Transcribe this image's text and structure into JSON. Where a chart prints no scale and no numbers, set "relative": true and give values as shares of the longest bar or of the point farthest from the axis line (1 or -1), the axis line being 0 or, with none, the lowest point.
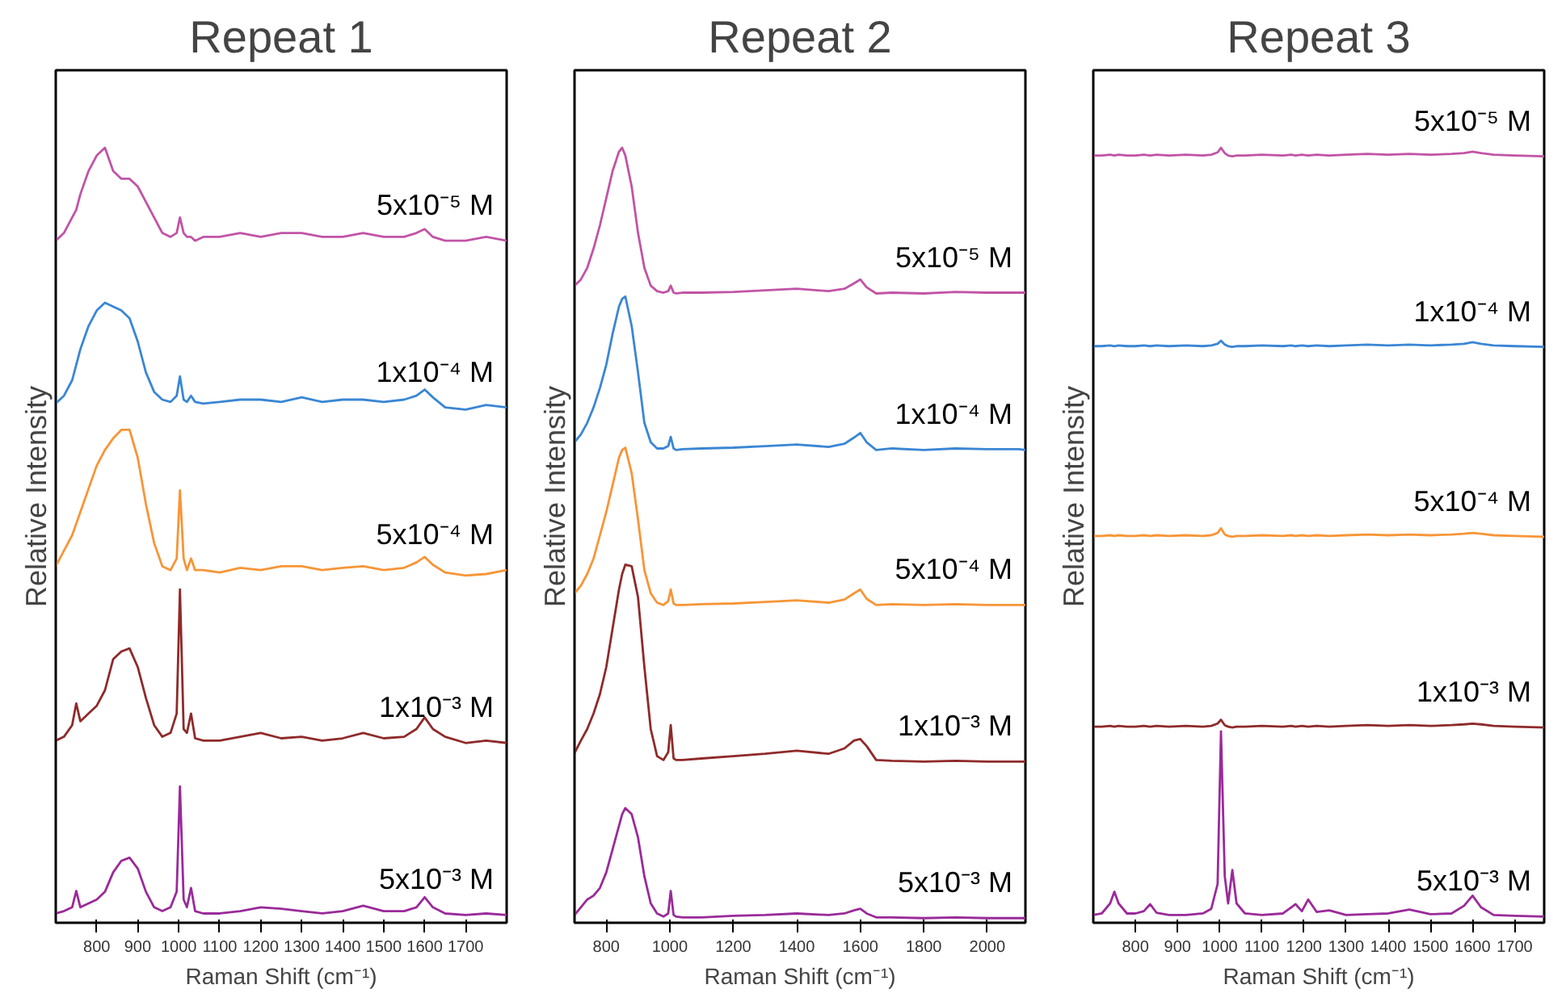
{
  "chart_data": [
    {
      "type": "line",
      "title": "Repeat 1",
      "xlabel": "Raman Shift (cm⁻¹)",
      "ylabel": "Relative Intensity",
      "relative": true,
      "tick_labels": "x",
      "xlim": [
        700,
        1800
      ],
      "xticks": [
        800,
        900,
        1000,
        1100,
        1200,
        1300,
        1400,
        1500,
        1600,
        1700
      ],
      "x": [
        700,
        720,
        740,
        750,
        760,
        780,
        800,
        820,
        840,
        860,
        880,
        900,
        920,
        940,
        960,
        980,
        995,
        1003,
        1012,
        1020,
        1030,
        1040,
        1060,
        1100,
        1150,
        1200,
        1250,
        1300,
        1350,
        1400,
        1450,
        1500,
        1550,
        1580,
        1600,
        1620,
        1650,
        1700,
        1750,
        1800
      ],
      "series": [
        {
          "name": "5x10⁻⁵ M",
          "color": "#c154a6",
          "values": [
            0.88,
            0.89,
            0.91,
            0.92,
            0.94,
            0.97,
            0.99,
            1.0,
            0.97,
            0.96,
            0.96,
            0.95,
            0.93,
            0.91,
            0.89,
            0.885,
            0.89,
            0.91,
            0.89,
            0.885,
            0.885,
            0.88,
            0.885,
            0.885,
            0.89,
            0.885,
            0.89,
            0.89,
            0.885,
            0.885,
            0.89,
            0.885,
            0.885,
            0.89,
            0.895,
            0.885,
            0.88,
            0.88,
            0.885,
            0.88
          ]
        },
        {
          "name": "1x10⁻⁴ M",
          "color": "#3a86d4",
          "values": [
            0.67,
            0.68,
            0.7,
            0.72,
            0.74,
            0.77,
            0.79,
            0.8,
            0.795,
            0.79,
            0.78,
            0.75,
            0.71,
            0.685,
            0.675,
            0.672,
            0.68,
            0.705,
            0.675,
            0.672,
            0.68,
            0.672,
            0.67,
            0.672,
            0.675,
            0.675,
            0.672,
            0.678,
            0.672,
            0.675,
            0.675,
            0.672,
            0.675,
            0.68,
            0.688,
            0.678,
            0.665,
            0.662,
            0.668,
            0.665
          ]
        },
        {
          "name": "5x10⁻⁴ M",
          "color": "#f79537",
          "values": [
            0.46,
            0.48,
            0.5,
            0.515,
            0.53,
            0.56,
            0.59,
            0.61,
            0.625,
            0.636,
            0.636,
            0.6,
            0.54,
            0.49,
            0.46,
            0.455,
            0.47,
            0.558,
            0.47,
            0.455,
            0.47,
            0.455,
            0.455,
            0.452,
            0.458,
            0.455,
            0.46,
            0.46,
            0.455,
            0.458,
            0.46,
            0.455,
            0.458,
            0.465,
            0.472,
            0.462,
            0.452,
            0.448,
            0.45,
            0.455
          ]
        },
        {
          "name": "1x10⁻³ M",
          "color": "#8f2a2a",
          "values": [
            0.235,
            0.24,
            0.255,
            0.283,
            0.26,
            0.27,
            0.28,
            0.3,
            0.34,
            0.35,
            0.354,
            0.33,
            0.29,
            0.255,
            0.24,
            0.245,
            0.27,
            0.43,
            0.25,
            0.245,
            0.27,
            0.238,
            0.235,
            0.235,
            0.24,
            0.245,
            0.238,
            0.24,
            0.235,
            0.238,
            0.245,
            0.238,
            0.24,
            0.25,
            0.265,
            0.25,
            0.24,
            0.232,
            0.235,
            0.232
          ]
        },
        {
          "name": "5x10⁻³ M",
          "color": "#9a2a9a",
          "values": [
            0.012,
            0.015,
            0.02,
            0.041,
            0.02,
            0.025,
            0.03,
            0.04,
            0.065,
            0.08,
            0.084,
            0.07,
            0.04,
            0.02,
            0.015,
            0.02,
            0.04,
            0.176,
            0.03,
            0.02,
            0.045,
            0.015,
            0.012,
            0.012,
            0.015,
            0.02,
            0.018,
            0.015,
            0.012,
            0.015,
            0.022,
            0.015,
            0.015,
            0.02,
            0.033,
            0.02,
            0.012,
            0.01,
            0.012,
            0.01
          ]
        }
      ]
    },
    {
      "type": "line",
      "title": "Repeat 2",
      "xlabel": "Raman Shift (cm⁻¹)",
      "ylabel": "Relative Intensity",
      "relative": true,
      "tick_labels": "x",
      "xlim": [
        700,
        2120
      ],
      "xticks": [
        800,
        1000,
        1200,
        1400,
        1600,
        1800,
        2000
      ],
      "x": [
        700,
        720,
        740,
        760,
        780,
        800,
        820,
        840,
        850,
        860,
        880,
        900,
        920,
        940,
        960,
        980,
        995,
        1003,
        1012,
        1020,
        1040,
        1100,
        1200,
        1300,
        1400,
        1500,
        1550,
        1580,
        1600,
        1620,
        1650,
        1700,
        1800,
        1900,
        2000,
        2100,
        2120
      ],
      "series": [
        {
          "name": "5x10⁻⁵ M",
          "color": "#c154a6",
          "values": [
            0.822,
            0.83,
            0.845,
            0.87,
            0.9,
            0.935,
            0.97,
            0.995,
            1.0,
            0.99,
            0.95,
            0.89,
            0.845,
            0.822,
            0.815,
            0.813,
            0.815,
            0.822,
            0.813,
            0.812,
            0.813,
            0.813,
            0.814,
            0.816,
            0.818,
            0.815,
            0.818,
            0.825,
            0.83,
            0.82,
            0.812,
            0.813,
            0.812,
            0.814,
            0.813,
            0.813,
            0.813
          ]
        },
        {
          "name": "1x10⁻⁴ M",
          "color": "#3a86d4",
          "values": [
            0.62,
            0.63,
            0.645,
            0.665,
            0.69,
            0.72,
            0.76,
            0.795,
            0.805,
            0.808,
            0.77,
            0.71,
            0.645,
            0.62,
            0.612,
            0.612,
            0.615,
            0.627,
            0.612,
            0.61,
            0.611,
            0.612,
            0.613,
            0.615,
            0.617,
            0.614,
            0.618,
            0.626,
            0.632,
            0.62,
            0.61,
            0.612,
            0.61,
            0.612,
            0.611,
            0.611,
            0.61
          ]
        },
        {
          "name": "5x10⁻⁴ M",
          "color": "#f79537",
          "values": [
            0.425,
            0.435,
            0.45,
            0.47,
            0.5,
            0.53,
            0.565,
            0.6,
            0.61,
            0.613,
            0.58,
            0.52,
            0.455,
            0.425,
            0.413,
            0.41,
            0.415,
            0.43,
            0.412,
            0.41,
            0.41,
            0.411,
            0.412,
            0.414,
            0.416,
            0.413,
            0.417,
            0.425,
            0.43,
            0.418,
            0.41,
            0.411,
            0.41,
            0.411,
            0.41,
            0.41,
            0.41
          ]
        },
        {
          "name": "1x10⁻³ M",
          "color": "#8f2a2a",
          "values": [
            0.219,
            0.235,
            0.25,
            0.27,
            0.295,
            0.33,
            0.38,
            0.43,
            0.45,
            0.462,
            0.46,
            0.42,
            0.33,
            0.25,
            0.215,
            0.21,
            0.22,
            0.255,
            0.212,
            0.21,
            0.21,
            0.212,
            0.215,
            0.218,
            0.222,
            0.218,
            0.225,
            0.235,
            0.237,
            0.228,
            0.21,
            0.209,
            0.208,
            0.209,
            0.208,
            0.208,
            0.208
          ]
        },
        {
          "name": "5x10⁻³ M",
          "color": "#9a2a9a",
          "values": [
            0.01,
            0.02,
            0.03,
            0.035,
            0.045,
            0.065,
            0.095,
            0.125,
            0.14,
            0.148,
            0.14,
            0.11,
            0.06,
            0.025,
            0.012,
            0.008,
            0.012,
            0.041,
            0.01,
            0.008,
            0.007,
            0.007,
            0.009,
            0.01,
            0.012,
            0.01,
            0.012,
            0.016,
            0.018,
            0.012,
            0.007,
            0.007,
            0.006,
            0.007,
            0.006,
            0.006,
            0.006
          ]
        }
      ]
    },
    {
      "type": "line",
      "title": "Repeat 3",
      "xlabel": "Raman Shift (cm⁻¹)",
      "ylabel": "Relative Intensity",
      "relative": true,
      "tick_labels": "x",
      "xlim": [
        700,
        1770
      ],
      "xticks": [
        800,
        900,
        1000,
        1100,
        1200,
        1300,
        1400,
        1500,
        1600,
        1700
      ],
      "x": [
        700,
        720,
        740,
        750,
        760,
        780,
        800,
        820,
        835,
        850,
        880,
        920,
        960,
        980,
        995,
        1003,
        1012,
        1020,
        1030,
        1040,
        1060,
        1100,
        1150,
        1170,
        1180,
        1195,
        1210,
        1230,
        1260,
        1300,
        1350,
        1400,
        1450,
        1500,
        1550,
        1580,
        1600,
        1620,
        1650,
        1700,
        1770
      ],
      "series": [
        {
          "name": "5x10⁻⁵ M",
          "color": "#c154a6",
          "values": [
            0.99,
            0.99,
            0.991,
            0.99,
            0.991,
            0.99,
            0.99,
            0.991,
            0.99,
            0.991,
            0.99,
            0.991,
            0.99,
            0.991,
            0.994,
            1.0,
            0.993,
            0.99,
            0.989,
            0.99,
            0.99,
            0.991,
            0.99,
            0.991,
            0.99,
            0.991,
            0.99,
            0.991,
            0.99,
            0.991,
            0.992,
            0.991,
            0.992,
            0.991,
            0.992,
            0.993,
            0.995,
            0.993,
            0.991,
            0.99,
            0.989
          ]
        },
        {
          "name": "1x10⁻⁴ M",
          "color": "#3a86d4",
          "values": [
            0.744,
            0.744,
            0.745,
            0.744,
            0.745,
            0.744,
            0.744,
            0.745,
            0.744,
            0.745,
            0.744,
            0.745,
            0.744,
            0.745,
            0.747,
            0.751,
            0.746,
            0.744,
            0.743,
            0.744,
            0.744,
            0.745,
            0.744,
            0.745,
            0.744,
            0.745,
            0.744,
            0.745,
            0.744,
            0.745,
            0.746,
            0.745,
            0.746,
            0.745,
            0.746,
            0.747,
            0.749,
            0.747,
            0.745,
            0.744,
            0.743
          ]
        },
        {
          "name": "5x10⁻⁴ M",
          "color": "#f79537",
          "values": [
            0.499,
            0.499,
            0.5,
            0.499,
            0.5,
            0.499,
            0.499,
            0.5,
            0.499,
            0.5,
            0.499,
            0.5,
            0.499,
            0.5,
            0.503,
            0.509,
            0.501,
            0.499,
            0.498,
            0.499,
            0.499,
            0.5,
            0.499,
            0.5,
            0.499,
            0.5,
            0.499,
            0.5,
            0.499,
            0.5,
            0.501,
            0.5,
            0.501,
            0.5,
            0.501,
            0.502,
            0.503,
            0.502,
            0.5,
            0.499,
            0.498
          ]
        },
        {
          "name": "1x10⁻³ M",
          "color": "#8f2a2a",
          "values": [
            0.253,
            0.253,
            0.254,
            0.253,
            0.254,
            0.253,
            0.253,
            0.254,
            0.253,
            0.254,
            0.253,
            0.254,
            0.253,
            0.254,
            0.257,
            0.262,
            0.255,
            0.253,
            0.252,
            0.253,
            0.253,
            0.254,
            0.253,
            0.254,
            0.253,
            0.254,
            0.253,
            0.254,
            0.253,
            0.254,
            0.255,
            0.254,
            0.255,
            0.254,
            0.255,
            0.256,
            0.257,
            0.256,
            0.254,
            0.253,
            0.252
          ]
        },
        {
          "name": "5x10⁻³ M",
          "color": "#9a2a9a",
          "values": [
            0.01,
            0.012,
            0.025,
            0.04,
            0.025,
            0.012,
            0.012,
            0.015,
            0.024,
            0.013,
            0.01,
            0.01,
            0.012,
            0.018,
            0.05,
            0.247,
            0.06,
            0.025,
            0.068,
            0.025,
            0.012,
            0.01,
            0.012,
            0.02,
            0.024,
            0.015,
            0.03,
            0.014,
            0.016,
            0.01,
            0.011,
            0.012,
            0.017,
            0.011,
            0.012,
            0.022,
            0.035,
            0.02,
            0.01,
            0.009,
            0.008
          ]
        }
      ]
    }
  ]
}
